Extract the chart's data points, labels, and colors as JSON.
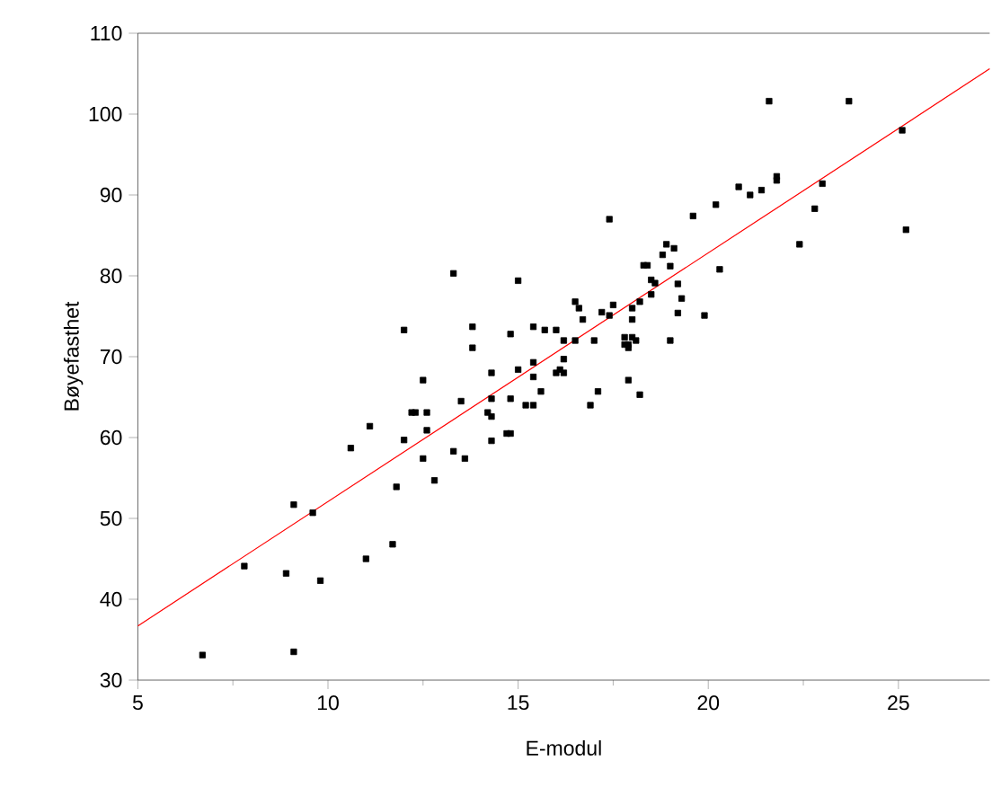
{
  "chart_data": {
    "type": "scatter",
    "xlabel": "E-modul",
    "ylabel": "Bøyefasthet",
    "xlim": [
      5,
      27.4
    ],
    "ylim": [
      30,
      110
    ],
    "xticks": [
      5,
      {
        "value": 7.5,
        "label": null
      },
      10,
      {
        "value": 12.5,
        "label": null
      },
      15,
      {
        "value": 17.5,
        "label": null
      },
      20,
      {
        "value": 22.5,
        "label": null
      },
      25
    ],
    "yticks": [
      30,
      40,
      50,
      60,
      70,
      80,
      90,
      100,
      110
    ],
    "series": [
      {
        "color": "#000000",
        "marker": "square",
        "x": [
          6.7,
          9.1,
          7.8,
          8.9,
          9.8,
          9.1,
          9.6,
          11.0,
          11.7,
          10.6,
          11.1,
          11.8,
          12.0,
          12.5,
          12.5,
          12.2,
          12.3,
          12.6,
          12.6,
          12.8,
          13.3,
          13.6,
          13.5,
          12.0,
          13.3,
          13.8,
          13.8,
          15.0,
          14.3,
          14.3,
          14.2,
          14.3,
          14.3,
          14.7,
          14.8,
          14.8,
          15.0,
          14.8,
          15.4,
          15.7,
          16.0,
          15.4,
          15.4,
          15.2,
          15.4,
          15.6,
          16.2,
          16.5,
          16.2,
          16.0,
          16.2,
          16.1,
          16.9,
          17.1,
          17.0,
          16.5,
          16.6,
          16.7,
          17.2,
          17.5,
          17.4,
          17.4,
          18.0,
          18.0,
          17.8,
          18.0,
          18.1,
          17.9,
          17.8,
          17.9,
          17.9,
          18.2,
          18.2,
          18.5,
          18.5,
          18.6,
          18.3,
          18.4,
          18.8,
          21.6,
          23.7,
          25.1,
          25.2,
          21.8,
          21.8,
          23.0,
          22.8,
          22.4,
          21.4,
          21.1,
          20.8,
          20.2,
          20.3,
          19.6,
          19.9,
          19.2,
          19.3,
          19.2,
          19.0,
          18.9,
          19.1,
          19.0
        ],
        "values": [
          33.1,
          33.5,
          44.1,
          43.2,
          42.3,
          51.7,
          50.7,
          45.0,
          46.8,
          58.7,
          61.4,
          53.9,
          59.7,
          57.4,
          67.1,
          63.1,
          63.1,
          63.1,
          60.9,
          54.7,
          58.3,
          57.4,
          64.5,
          73.3,
          80.3,
          73.7,
          71.1,
          79.4,
          68.0,
          64.8,
          63.1,
          62.6,
          59.6,
          60.5,
          60.5,
          64.8,
          68.4,
          72.8,
          73.7,
          73.3,
          73.3,
          69.3,
          67.5,
          64.0,
          64.0,
          65.7,
          72.0,
          72.0,
          69.7,
          68.0,
          68.0,
          68.4,
          64.0,
          65.7,
          72.0,
          76.8,
          76.0,
          74.6,
          75.5,
          76.4,
          75.1,
          87.0,
          76.0,
          74.6,
          72.4,
          72.4,
          72.0,
          71.5,
          71.5,
          71.1,
          67.1,
          65.3,
          76.8,
          77.7,
          79.5,
          79.1,
          81.3,
          81.3,
          82.6,
          101.6,
          101.6,
          98.0,
          85.7,
          92.3,
          91.8,
          91.4,
          88.3,
          83.9,
          90.6,
          90.0,
          91.0,
          88.8,
          80.8,
          87.4,
          75.1,
          79.0,
          77.2,
          75.4,
          81.2,
          83.9,
          83.4,
          72.0
        ]
      },
      {
        "type": "line",
        "color": "#ff0000",
        "marker": "none",
        "x": [
          5,
          27.4
        ],
        "values": [
          36.7,
          105.6
        ]
      }
    ]
  }
}
